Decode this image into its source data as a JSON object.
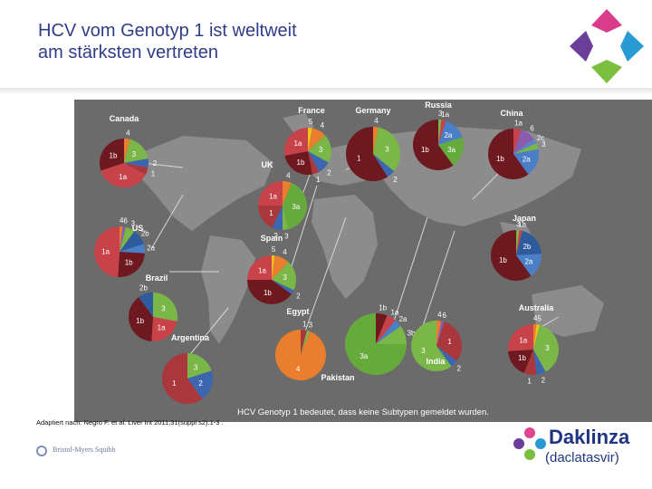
{
  "slide": {
    "title_line1": "HCV vom Genotyp 1 ist weltweit",
    "title_line2": "am stärksten vertreten",
    "caption": "HCV Genotyp 1 bedeutet, dass keine Subtypen gemeldet wurden.",
    "source": "Adaptiert nach: Negro F. et al. Liver Int 2011;31(suppl s2):1-3 .",
    "company": "Bristol-Myers Squibb",
    "brand": "Daklinza",
    "brand_sub": "(daclatasvir)"
  },
  "colors": {
    "title": "#2f3d88",
    "g1": "#a9373c",
    "g1a": "#c8424a",
    "g1b": "#6e1820",
    "g2": "#3c66b0",
    "g2a": "#4a7fc7",
    "g2b": "#2e5a9e",
    "g2c": "#5a84c4",
    "g3": "#7ab648",
    "g3a": "#66aa3e",
    "g4": "#e87e2e",
    "g5": "#f0c318",
    "g6": "#8a5cb0",
    "map_bg": "#6b6b6b"
  },
  "countries": [
    {
      "name": "Canada",
      "slices": [
        {
          "label": "4",
          "value": 4,
          "c": "g4"
        },
        {
          "label": "3",
          "value": 18,
          "c": "g3"
        },
        {
          "label": "2",
          "value": 6,
          "c": "g2"
        },
        {
          "label": "1",
          "value": 5,
          "c": "g1"
        },
        {
          "label": "1a",
          "value": 37,
          "c": "g1a"
        },
        {
          "label": "1b",
          "value": 30,
          "c": "g1b"
        }
      ]
    },
    {
      "name": "US",
      "slices": [
        {
          "label": "4",
          "value": 2,
          "c": "g4"
        },
        {
          "label": "6",
          "value": 2,
          "c": "g6"
        },
        {
          "label": "3",
          "value": 6,
          "c": "g3"
        },
        {
          "label": "2b",
          "value": 10,
          "c": "g2b"
        },
        {
          "label": "2a",
          "value": 6,
          "c": "g2a"
        },
        {
          "label": "1b",
          "value": 25,
          "c": "g1b"
        },
        {
          "label": "1a",
          "value": 49,
          "c": "g1a"
        }
      ]
    },
    {
      "name": "Brazil",
      "slices": [
        {
          "label": "3",
          "value": 28,
          "c": "g3"
        },
        {
          "label": "1a",
          "value": 23,
          "c": "g1a"
        },
        {
          "label": "1b",
          "value": 39,
          "c": "g1b"
        },
        {
          "label": "2b",
          "value": 10,
          "c": "g2b"
        }
      ]
    },
    {
      "name": "Argentina",
      "slices": [
        {
          "label": "3",
          "value": 20,
          "c": "g3"
        },
        {
          "label": "2",
          "value": 20,
          "c": "g2"
        },
        {
          "label": "1",
          "value": 60,
          "c": "g1"
        }
      ]
    },
    {
      "name": "France",
      "slices": [
        {
          "label": "5",
          "value": 3,
          "c": "g5"
        },
        {
          "label": "4",
          "value": 10,
          "c": "g4"
        },
        {
          "label": "3",
          "value": 20,
          "c": "g3"
        },
        {
          "label": "2",
          "value": 9,
          "c": "g2"
        },
        {
          "label": "1",
          "value": 5,
          "c": "g1"
        },
        {
          "label": "1b",
          "value": 25,
          "c": "g1b"
        },
        {
          "label": "1a",
          "value": 28,
          "c": "g1a"
        }
      ]
    },
    {
      "name": "UK",
      "slices": [
        {
          "label": "4",
          "value": 6,
          "c": "g4"
        },
        {
          "label": "3a",
          "value": 40,
          "c": "g3a"
        },
        {
          "label": "3",
          "value": 4,
          "c": "g3"
        },
        {
          "label": "2",
          "value": 7,
          "c": "g2"
        },
        {
          "label": "1",
          "value": 18,
          "c": "g1"
        },
        {
          "label": "1a",
          "value": 25,
          "c": "g1a"
        }
      ]
    },
    {
      "name": "Spain",
      "slices": [
        {
          "label": "5",
          "value": 2,
          "c": "g5"
        },
        {
          "label": "4",
          "value": 10,
          "c": "g4"
        },
        {
          "label": "3",
          "value": 20,
          "c": "g3"
        },
        {
          "label": "2",
          "value": 3,
          "c": "g2"
        },
        {
          "label": "1b",
          "value": 40,
          "c": "g1b"
        },
        {
          "label": "1a",
          "value": 25,
          "c": "g1a"
        }
      ]
    },
    {
      "name": "Germany",
      "slices": [
        {
          "label": "4",
          "value": 3,
          "c": "g4"
        },
        {
          "label": "3",
          "value": 33,
          "c": "g3"
        },
        {
          "label": "2",
          "value": 5,
          "c": "g2"
        },
        {
          "label": "1",
          "value": 59,
          "c": "g1b"
        }
      ]
    },
    {
      "name": "Egypt",
      "slices": [
        {
          "label": "1",
          "value": 4,
          "c": "g1"
        },
        {
          "label": "3",
          "value": 2,
          "c": "g3"
        },
        {
          "label": "4",
          "value": 94,
          "c": "g4"
        }
      ]
    },
    {
      "name": "Russia",
      "slices": [
        {
          "label": "3",
          "value": 2,
          "c": "g3"
        },
        {
          "label": "1a",
          "value": 3,
          "c": "g1a"
        },
        {
          "label": "2a",
          "value": 15,
          "c": "g2a"
        },
        {
          "label": "3a",
          "value": 20,
          "c": "g3a"
        },
        {
          "label": "1b",
          "value": 60,
          "c": "g1b"
        }
      ]
    },
    {
      "name": "China",
      "slices": [
        {
          "label": "1a",
          "value": 5,
          "c": "g1a"
        },
        {
          "label": "6",
          "value": 10,
          "c": "g6"
        },
        {
          "label": "2c",
          "value": 3,
          "c": "g2c"
        },
        {
          "label": "3",
          "value": 4,
          "c": "g3"
        },
        {
          "label": "2a",
          "value": 18,
          "c": "g2a"
        },
        {
          "label": "1b",
          "value": 60,
          "c": "g1b"
        }
      ]
    },
    {
      "name": "Pakistan",
      "slices": [
        {
          "label": "1b",
          "value": 6,
          "c": "g1b"
        },
        {
          "label": "1a",
          "value": 5,
          "c": "g1a"
        },
        {
          "label": "2a",
          "value": 4,
          "c": "g2a"
        },
        {
          "label": "3b",
          "value": 10,
          "c": "g3"
        },
        {
          "label": "3a",
          "value": 75,
          "c": "g3a"
        }
      ]
    },
    {
      "name": "India",
      "slices": [
        {
          "label": "4",
          "value": 3,
          "c": "g4"
        },
        {
          "label": "6",
          "value": 2,
          "c": "g6"
        },
        {
          "label": "1",
          "value": 30,
          "c": "g1"
        },
        {
          "label": "2",
          "value": 5,
          "c": "g2"
        },
        {
          "label": "3",
          "value": 60,
          "c": "g3"
        }
      ]
    },
    {
      "name": "Japan",
      "slices": [
        {
          "label": "3",
          "value": 2,
          "c": "g3"
        },
        {
          "label": "1a",
          "value": 2,
          "c": "g1a"
        },
        {
          "label": "2b",
          "value": 20,
          "c": "g2b"
        },
        {
          "label": "2a",
          "value": 16,
          "c": "g2a"
        },
        {
          "label": "1b",
          "value": 60,
          "c": "g1b"
        }
      ]
    },
    {
      "name": "Australia",
      "slices": [
        {
          "label": "4",
          "value": 2,
          "c": "g4"
        },
        {
          "label": "5",
          "value": 2,
          "c": "g5"
        },
        {
          "label": "3",
          "value": 38,
          "c": "g3"
        },
        {
          "label": "2",
          "value": 6,
          "c": "g2"
        },
        {
          "label": "1",
          "value": 8,
          "c": "g1"
        },
        {
          "label": "1b",
          "value": 18,
          "c": "g1b"
        },
        {
          "label": "1a",
          "value": 26,
          "c": "g1a"
        }
      ]
    }
  ]
}
